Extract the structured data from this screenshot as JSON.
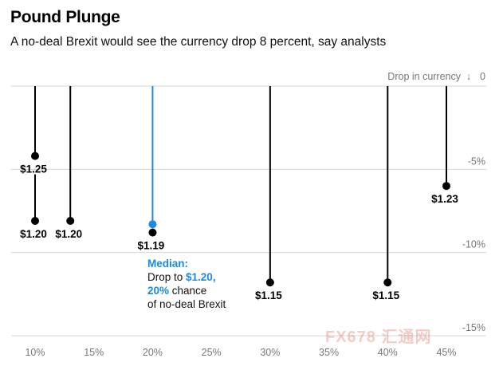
{
  "chart_data": {
    "type": "scatter",
    "title": "Pound Plunge",
    "subtitle": "A no-deal Brexit would see the currency drop 8 percent, say analysts",
    "ylabel": "Drop in currency",
    "ylabel_arrow": "↓",
    "x_ticks": [
      "10%",
      "15%",
      "20%",
      "25%",
      "30%",
      "35%",
      "40%",
      "45%"
    ],
    "x_tick_values": [
      10,
      15,
      20,
      25,
      30,
      35,
      40,
      45
    ],
    "xlim": [
      8.5,
      46
    ],
    "y_ticks": [
      "0",
      "-5%",
      "-10%",
      "-15%"
    ],
    "y_tick_values": [
      0,
      -5,
      -10,
      -15
    ],
    "ylim": [
      0,
      -15.2
    ],
    "grid": true,
    "points": [
      {
        "x": 10,
        "y": -4.2,
        "label": "$1.25",
        "highlight": false
      },
      {
        "x": 10,
        "y": -8.1,
        "label": "$1.20",
        "highlight": false
      },
      {
        "x": 13,
        "y": -8.1,
        "label": "$1.20",
        "highlight": false
      },
      {
        "x": 20,
        "y": -8.3,
        "label": "$1.20",
        "highlight": true
      },
      {
        "x": 20,
        "y": -8.8,
        "label": "$1.19",
        "highlight": false
      },
      {
        "x": 30,
        "y": -11.8,
        "label": "$1.15",
        "highlight": false
      },
      {
        "x": 40,
        "y": -11.8,
        "label": "$1.15",
        "highlight": false
      },
      {
        "x": 45,
        "y": -6.0,
        "label": "$1.23",
        "highlight": false
      }
    ],
    "annotation": {
      "heading": "Median:",
      "line1_prefix": "Drop to ",
      "line1_value": "$1.20,",
      "line2_value": "20%",
      "line2_suffix": " chance",
      "line3": "of no-deal Brexit"
    }
  },
  "watermark": "FX678 汇通网",
  "colors": {
    "accent": "#1b8ae0",
    "grid": "#d4d4d4",
    "mark": "#000000"
  }
}
